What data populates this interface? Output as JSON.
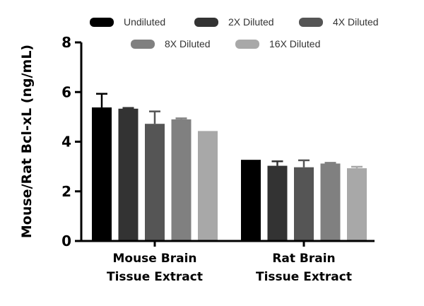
{
  "chart_data": {
    "type": "bar",
    "title": "",
    "xlabel": "",
    "ylabel": "Mouse/Rat Bcl-xL (ng/mL)",
    "ylim": [
      0,
      8
    ],
    "yticks": [
      0,
      2,
      4,
      6,
      8
    ],
    "grid": false,
    "legend_position": "top",
    "categories": [
      [
        "Mouse Brain",
        "Tissue Extract"
      ],
      [
        "Rat Brain",
        "Tissue Extract"
      ]
    ],
    "series": [
      {
        "name": "Undiluted",
        "color": "#000000",
        "values": [
          5.38,
          3.27
        ],
        "errors": [
          0.55,
          0.0
        ]
      },
      {
        "name": "2X Diluted",
        "color": "#333333",
        "values": [
          5.33,
          3.03
        ],
        "errors": [
          0.03,
          0.18
        ]
      },
      {
        "name": "4X Diluted",
        "color": "#555555",
        "values": [
          4.72,
          2.97
        ],
        "errors": [
          0.5,
          0.28
        ]
      },
      {
        "name": "8X Diluted",
        "color": "#808080",
        "values": [
          4.9,
          3.12
        ],
        "errors": [
          0.04,
          0.03
        ]
      },
      {
        "name": "16X Diluted",
        "color": "#a8a8a8",
        "values": [
          4.43,
          2.93
        ],
        "errors": [
          0.0,
          0.06
        ]
      }
    ]
  }
}
